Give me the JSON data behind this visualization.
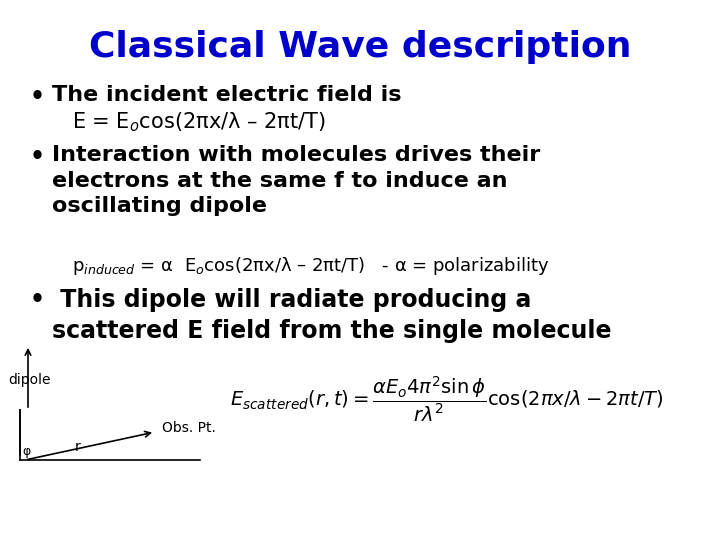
{
  "title": "Classical Wave description",
  "title_color": "#0000cc",
  "title_fontsize": 26,
  "bg_color": "#ffffff",
  "bullet1_text": "The incident electric field is",
  "bullet1_formula": "E = E$_o$cos(2πx/λ – 2πt/T)",
  "bullet2_text": "Interaction with molecules drives their\nelectrons at the same f to induce an\noscillating dipole",
  "bullet2_formula": "p$_{induced}$ = α  E$_o$cos(2πx/λ – 2πt/T)   - α = polarizability",
  "bullet3_text": " This dipole will radiate producing a\nscattered E field from the single molecule",
  "formula_scattered": "$E_{scattered}(r,t) = \\dfrac{\\alpha E_o 4\\pi^2 \\sin\\phi}{r\\lambda^2}\\cos(2\\pi x/\\lambda - 2\\pi t/T)$",
  "dipole_label": "dipole",
  "obs_pt_label": "Obs. Pt.",
  "r_label": "r",
  "phi_label": "φ",
  "text_color": "#000000",
  "main_fontsize": 16,
  "formula_fontsize": 13,
  "small_fontsize": 10,
  "scattered_formula_fontsize": 14
}
